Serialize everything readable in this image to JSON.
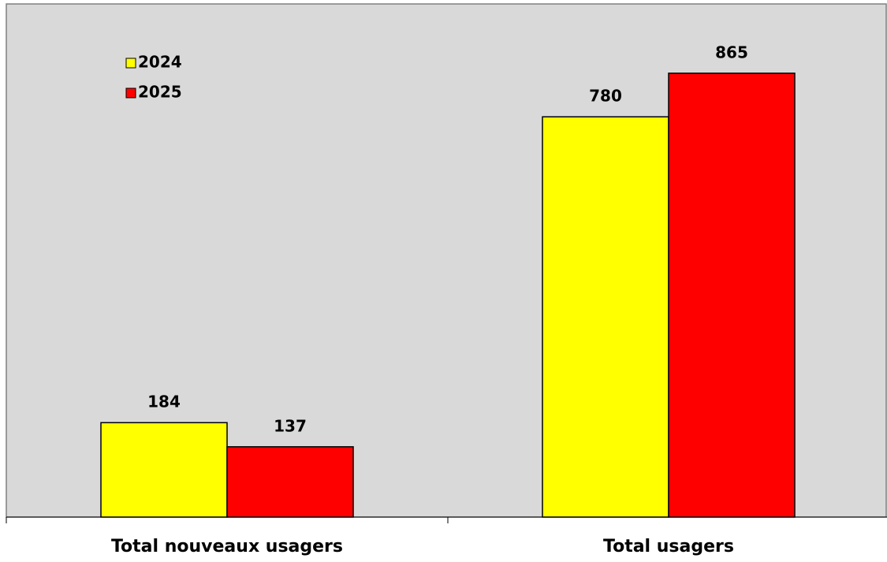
{
  "chart_data": {
    "type": "bar",
    "categories": [
      "Total nouveaux usagers",
      "Total usagers"
    ],
    "series": [
      {
        "name": "2024",
        "color": "#ffff00",
        "values": [
          184,
          780
        ]
      },
      {
        "name": "2025",
        "color": "#ff0000",
        "values": [
          137,
          865
        ]
      }
    ],
    "ylim": [
      0,
      1000
    ]
  }
}
